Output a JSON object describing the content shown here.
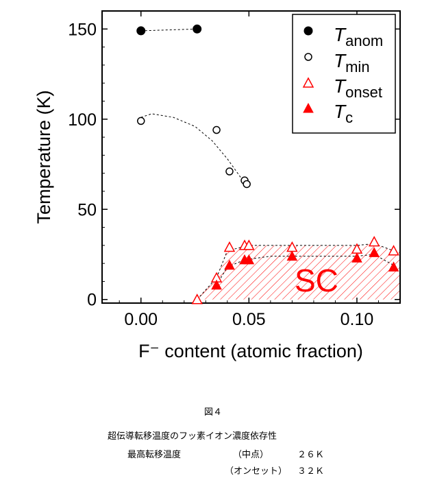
{
  "chart_data": {
    "type": "scatter",
    "xlabel": "F⁻ content (atomic fraction)",
    "ylabel": "Temperature (K)",
    "xlim": [
      -0.018,
      0.12
    ],
    "ylim": [
      -2,
      160
    ],
    "x_ticks": [
      0.0,
      0.05,
      0.1
    ],
    "x_tick_labels": [
      "0.00",
      "0.05",
      "0.10"
    ],
    "y_ticks": [
      0,
      50,
      100,
      150
    ],
    "y_tick_labels": [
      "0",
      "50",
      "100",
      "150"
    ],
    "grid": false,
    "legend_position": "top-right",
    "region_label": "SC",
    "series": [
      {
        "key": "anom",
        "symbol": "T",
        "subscript": "anom",
        "marker": "filled-circle",
        "color": "#000000",
        "x": [
          0.0,
          0.026
        ],
        "y": [
          149,
          150
        ]
      },
      {
        "key": "min",
        "symbol": "T",
        "subscript": "min",
        "marker": "open-circle",
        "color": "#000000",
        "x": [
          0.0,
          0.035,
          0.041,
          0.048,
          0.049
        ],
        "y": [
          99,
          94,
          71,
          66,
          64
        ]
      },
      {
        "key": "onset",
        "symbol": "T",
        "subscript": "onset",
        "marker": "open-triangle",
        "color": "#ff0000",
        "x": [
          0.026,
          0.035,
          0.041,
          0.048,
          0.05,
          0.07,
          0.1,
          0.108,
          0.117
        ],
        "y": [
          0,
          12,
          29,
          30,
          30,
          29,
          28,
          32,
          27
        ]
      },
      {
        "key": "c",
        "symbol": "T",
        "subscript": "c",
        "marker": "filled-triangle",
        "color": "#ff0000",
        "x": [
          0.035,
          0.041,
          0.048,
          0.05,
          0.07,
          0.1,
          0.108,
          0.117
        ],
        "y": [
          8,
          19,
          22,
          22,
          24,
          23,
          26,
          18
        ]
      }
    ],
    "guide_lines": {
      "anom": {
        "x": [
          0.0,
          0.026
        ],
        "y": [
          149,
          150
        ]
      },
      "min": {
        "x": [
          0.0,
          0.005,
          0.015,
          0.025,
          0.033,
          0.04,
          0.046,
          0.05
        ],
        "y": [
          101,
          103,
          101,
          96,
          88,
          78,
          68,
          62
        ]
      },
      "onset": {
        "x": [
          0.026,
          0.035,
          0.04,
          0.05,
          0.07,
          0.1,
          0.108,
          0.117
        ],
        "y": [
          0,
          12,
          27,
          30,
          30,
          30,
          31,
          27
        ]
      },
      "c": {
        "x": [
          0.035,
          0.04,
          0.048,
          0.06,
          0.08,
          0.1,
          0.108,
          0.117
        ],
        "y": [
          8,
          18,
          22,
          24,
          24,
          24,
          25,
          19
        ]
      }
    }
  },
  "figure_caption": {
    "figure_number": "図４",
    "title": "超伝導転移温度のフッ素イオン濃度依存性",
    "row1_label": "最高転移温度",
    "row1_kind": "（中点）",
    "row1_value": "２６Ｋ",
    "row2_kind": "（オンセット）",
    "row2_value": "３２Ｋ"
  }
}
